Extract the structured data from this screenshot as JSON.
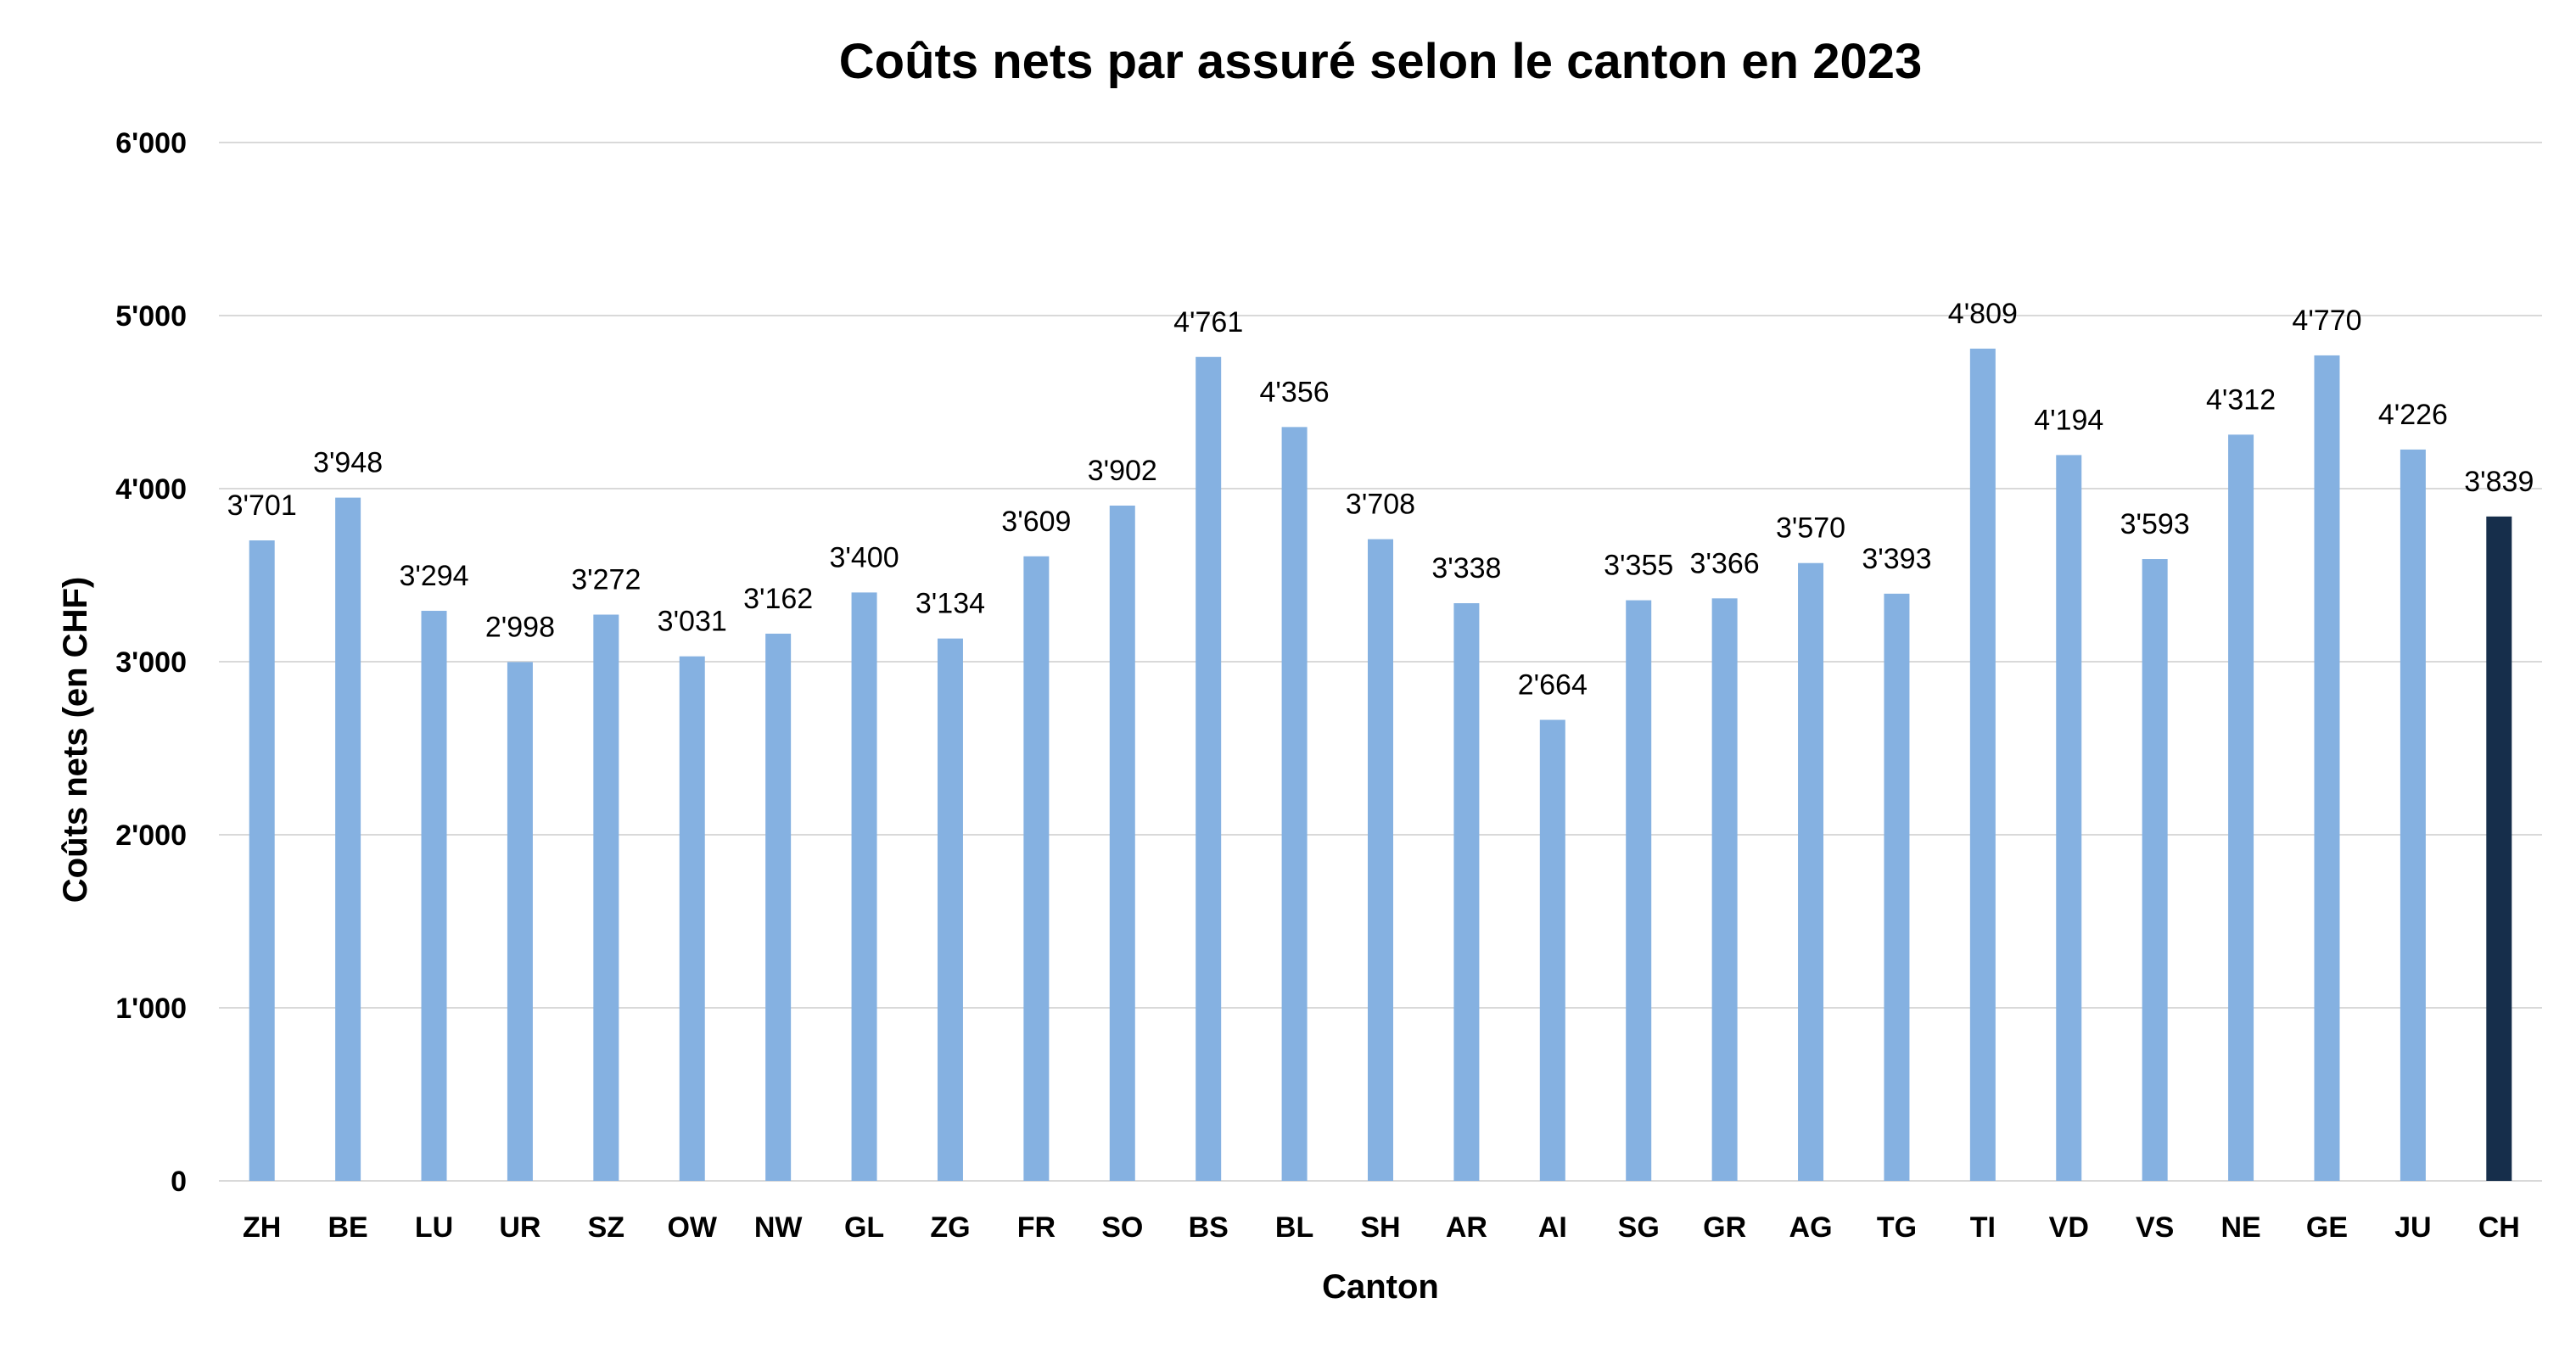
{
  "chart_data": {
    "type": "bar",
    "title": "Coûts nets par assuré selon le canton en 2023",
    "xlabel": "Canton",
    "ylabel": "Coûts nets (en CHF)",
    "ylim": [
      0,
      6000
    ],
    "yticks": [
      {
        "value": 0,
        "label": "0"
      },
      {
        "value": 1000,
        "label": "1'000"
      },
      {
        "value": 2000,
        "label": "2'000"
      },
      {
        "value": 3000,
        "label": "3'000"
      },
      {
        "value": 4000,
        "label": "4'000"
      },
      {
        "value": 5000,
        "label": "5'000"
      },
      {
        "value": 6000,
        "label": "6'000"
      }
    ],
    "grid": true,
    "categories": [
      "ZH",
      "BE",
      "LU",
      "UR",
      "SZ",
      "OW",
      "NW",
      "GL",
      "ZG",
      "FR",
      "SO",
      "BS",
      "BL",
      "SH",
      "AR",
      "AI",
      "SG",
      "GR",
      "AG",
      "TG",
      "TI",
      "VD",
      "VS",
      "NE",
      "GE",
      "JU",
      "CH"
    ],
    "values": [
      3701,
      3948,
      3294,
      2998,
      3272,
      3031,
      3162,
      3400,
      3134,
      3609,
      3902,
      4761,
      4356,
      3708,
      3338,
      2664,
      3355,
      3366,
      3570,
      3393,
      4809,
      4194,
      3593,
      4312,
      4770,
      4226,
      3839
    ],
    "data_labels": [
      "3'701",
      "3'948",
      "3'294",
      "2'998",
      "3'272",
      "3'031",
      "3'162",
      "3'400",
      "3'134",
      "3'609",
      "3'902",
      "4'761",
      "4'356",
      "3'708",
      "3'338",
      "2'664",
      "3'355",
      "3'366",
      "3'570",
      "3'393",
      "4'809",
      "4'194",
      "3'593",
      "4'312",
      "4'770",
      "4'226",
      "3'839"
    ],
    "colors": {
      "default_bar": "#85b1e1",
      "highlight_bar": "#162e4b",
      "highlight_category": "CH",
      "grid": "#d9d9d9"
    }
  }
}
